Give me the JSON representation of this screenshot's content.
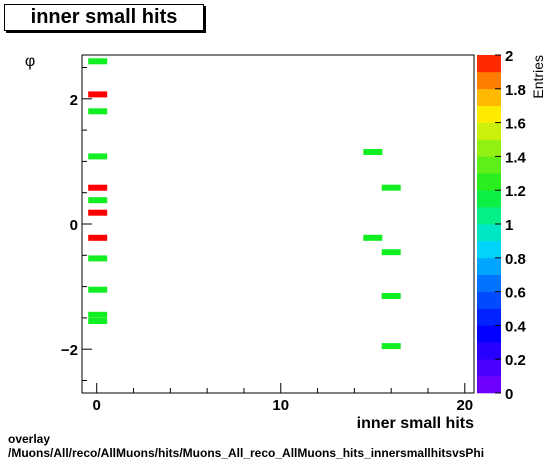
{
  "chart_data": {
    "type": "heatmap",
    "title": "inner small hits",
    "xlabel": "inner small hits",
    "ylabel": "φ",
    "zlabel": "Entries",
    "xlim": [
      -0.8,
      20.5
    ],
    "ylim": [
      -2.7,
      2.7
    ],
    "zlim": [
      0,
      2
    ],
    "x_ticks": [
      0,
      10,
      20
    ],
    "y_ticks": [
      -2,
      0,
      2
    ],
    "z_ticks": [
      0,
      0.2,
      0.4,
      0.6,
      0.8,
      1,
      1.2,
      1.4,
      1.6,
      1.8,
      2
    ],
    "bins": [
      {
        "x": 0,
        "y": 2.6,
        "z": 1
      },
      {
        "x": 0,
        "y": 2.07,
        "z": 2
      },
      {
        "x": 0,
        "y": 1.8,
        "z": 1
      },
      {
        "x": 0,
        "y": 1.08,
        "z": 1
      },
      {
        "x": 0,
        "y": 0.58,
        "z": 2
      },
      {
        "x": 0,
        "y": 0.38,
        "z": 1
      },
      {
        "x": 0,
        "y": 0.18,
        "z": 2
      },
      {
        "x": 0,
        "y": -0.22,
        "z": 2
      },
      {
        "x": 0,
        "y": -0.55,
        "z": 1
      },
      {
        "x": 0,
        "y": -1.05,
        "z": 1
      },
      {
        "x": 0,
        "y": -1.45,
        "z": 1
      },
      {
        "x": 0,
        "y": -1.55,
        "z": 1
      },
      {
        "x": 15,
        "y": 1.15,
        "z": 1
      },
      {
        "x": 16,
        "y": 0.58,
        "z": 1
      },
      {
        "x": 15,
        "y": -0.22,
        "z": 1
      },
      {
        "x": 16,
        "y": -0.45,
        "z": 1
      },
      {
        "x": 16,
        "y": -1.15,
        "z": 1
      },
      {
        "x": 16,
        "y": -1.95,
        "z": 1
      }
    ],
    "colors": {
      "z1": "#11ee22",
      "z2": "#ff0000"
    }
  },
  "footer": {
    "line1": "overlay",
    "line2": "/Muons/All/reco/AllMuons/hits/Muons_All_reco_AllMuons_hits_innersmallhitsvsPhi"
  }
}
